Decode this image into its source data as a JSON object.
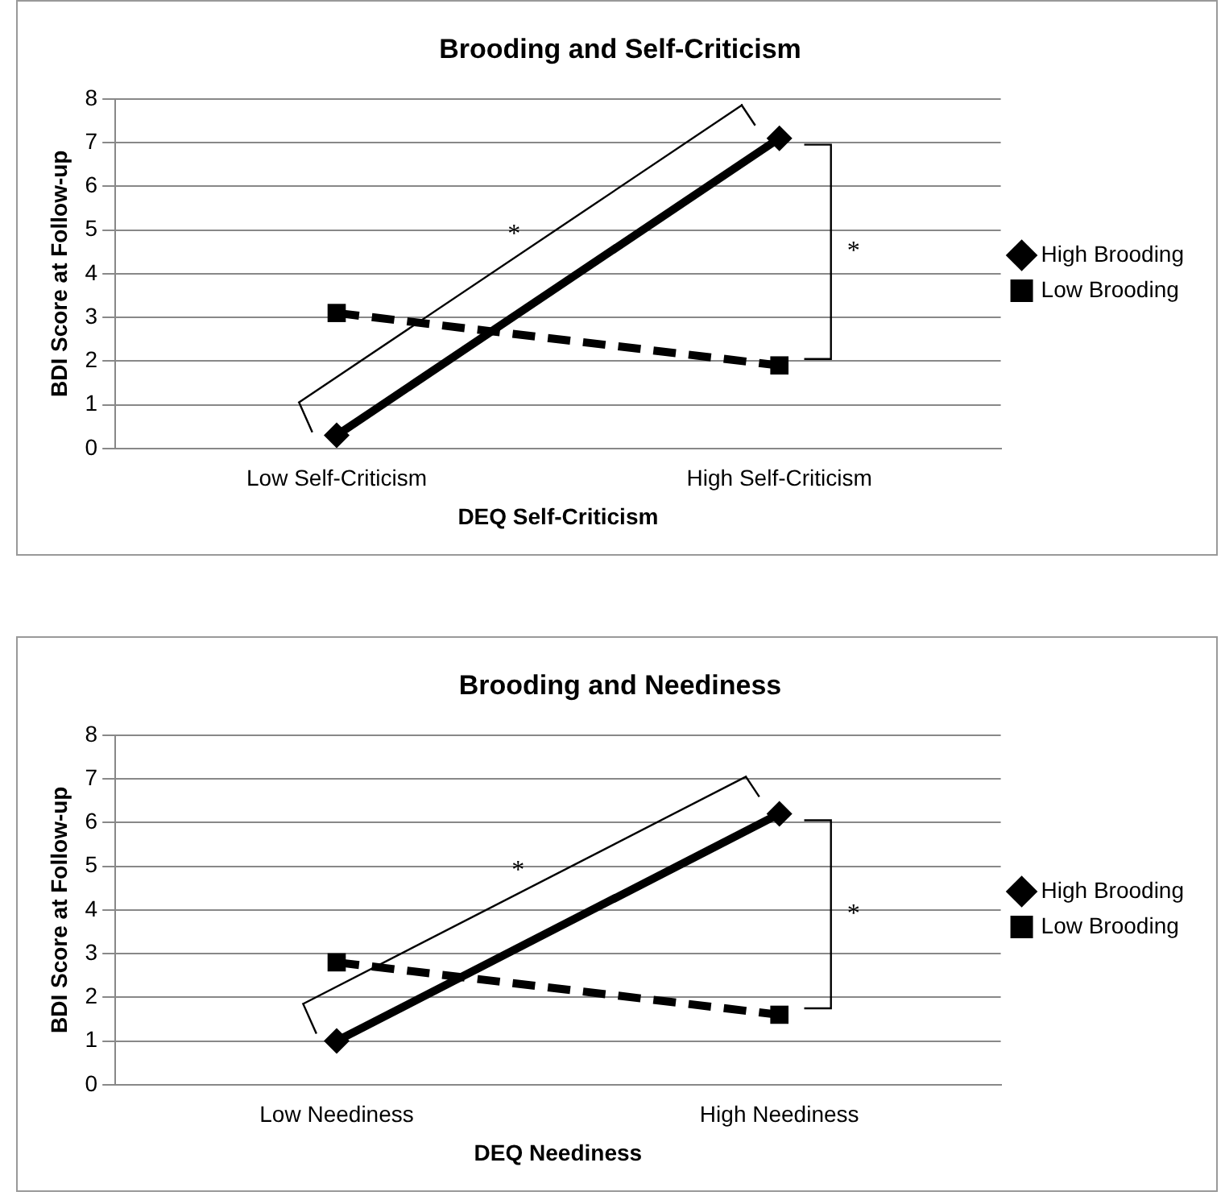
{
  "chart_data": [
    {
      "type": "line",
      "title": "Brooding and Self-Criticism",
      "xlabel": "DEQ Self-Criticism",
      "ylabel": "BDI Score at Follow-up",
      "categories": [
        "Low Self-Criticism",
        "High Self-Criticism"
      ],
      "series": [
        {
          "name": "High Brooding",
          "color": "#000000",
          "values": [
            0.3,
            7.1
          ],
          "marker": "diamond",
          "line_style": "solid"
        },
        {
          "name": "Low Brooding",
          "color": "#000000",
          "values": [
            3.1,
            1.9
          ],
          "marker": "square",
          "line_style": "dashed"
        }
      ],
      "ylim": [
        0,
        8
      ],
      "yticks": [
        0,
        1,
        2,
        3,
        4,
        5,
        6,
        7,
        8
      ],
      "grid": "y",
      "legend": "right",
      "annotations": [
        "*",
        "*"
      ]
    },
    {
      "type": "line",
      "title": "Brooding and Neediness",
      "xlabel": "DEQ Neediness",
      "ylabel": "BDI Score at Follow-up",
      "categories": [
        "Low Neediness",
        "High Neediness"
      ],
      "series": [
        {
          "name": "High Brooding",
          "color": "#000000",
          "values": [
            1.0,
            6.2
          ],
          "marker": "diamond",
          "line_style": "solid"
        },
        {
          "name": "Low Brooding",
          "color": "#000000",
          "values": [
            2.8,
            1.6
          ],
          "marker": "square",
          "line_style": "dashed"
        }
      ],
      "ylim": [
        0,
        8
      ],
      "yticks": [
        0,
        1,
        2,
        3,
        4,
        5,
        6,
        7,
        8
      ],
      "grid": "y",
      "legend": "right",
      "annotations": [
        "*",
        "*"
      ]
    }
  ]
}
